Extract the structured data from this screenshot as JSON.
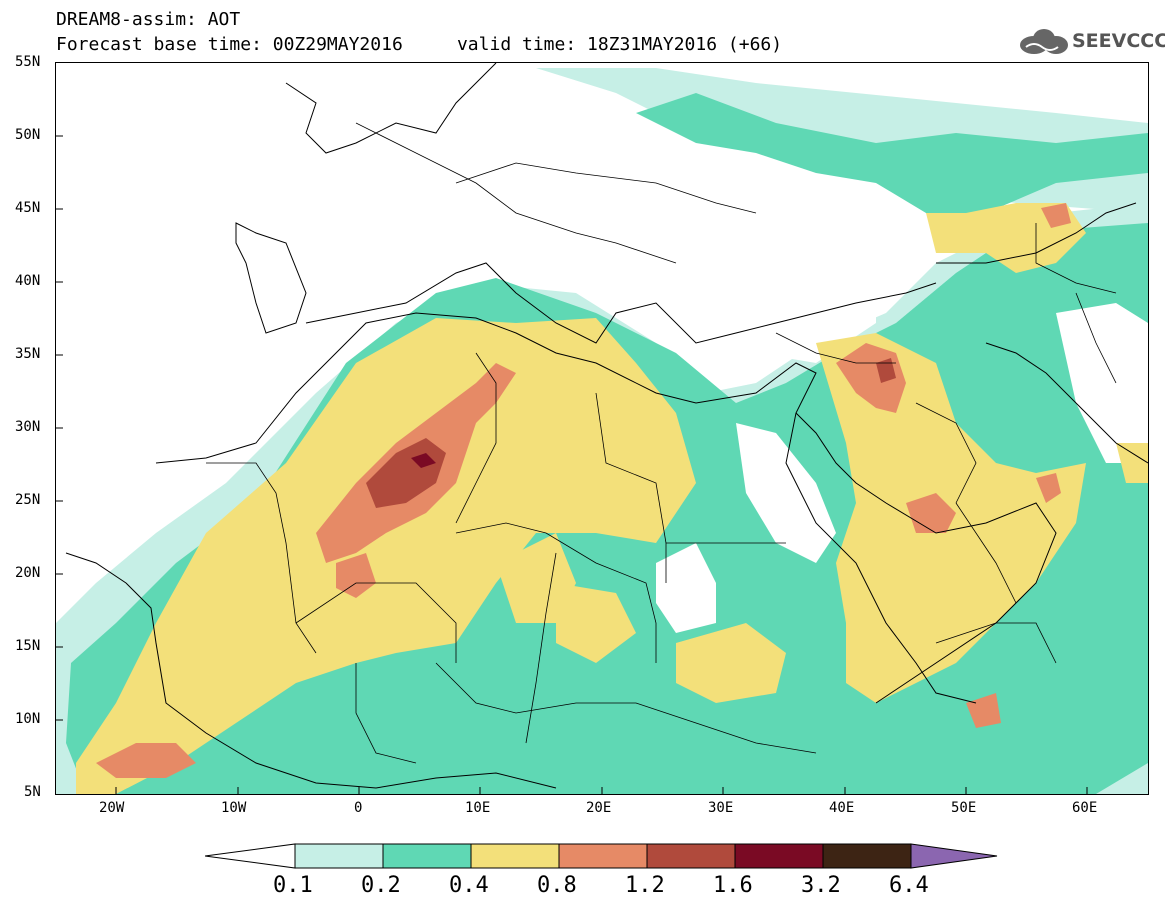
{
  "title": {
    "line1": "DREAM8-assim: AOT",
    "line2": "Forecast base time: 00Z29MAY2016     valid time: 18Z31MAY2016 (+66)"
  },
  "logo": {
    "text": "SEEVCCC",
    "icon": "cloud-icon"
  },
  "map": {
    "lat_range": [
      5,
      55
    ],
    "lon_range": [
      -25,
      65
    ],
    "lat_labels": [
      "55N",
      "50N",
      "45N",
      "40N",
      "35N",
      "30N",
      "25N",
      "20N",
      "15N",
      "10N",
      "5N"
    ],
    "lon_labels": [
      "20W",
      "10W",
      "0",
      "10E",
      "20E",
      "30E",
      "40E",
      "50E",
      "60E"
    ]
  },
  "colorbar": {
    "labels": [
      "0.1",
      "0.2",
      "0.4",
      "0.8",
      "1.2",
      "1.6",
      "3.2",
      "6.4"
    ],
    "colors": {
      "below": "#ffffff",
      "c1": "#c6efe6",
      "c2": "#5fd8b4",
      "c3": "#f3e07a",
      "c4": "#e68a66",
      "c5": "#b04a3c",
      "c6": "#7a0a24",
      "c7": "#3d2414",
      "above": "#8b66b0"
    }
  }
}
